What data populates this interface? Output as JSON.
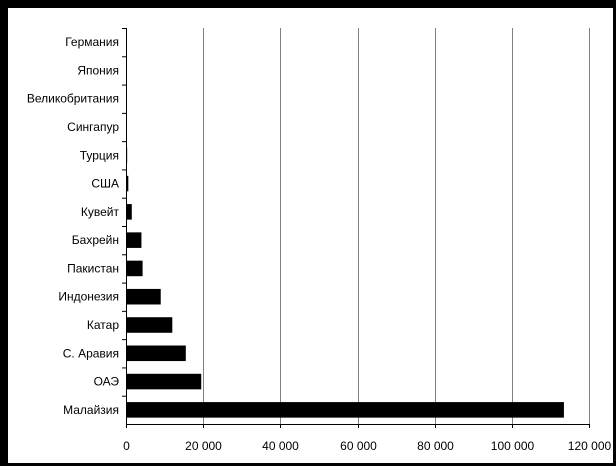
{
  "chart_data": {
    "type": "bar",
    "orientation": "horizontal",
    "title": "",
    "xlabel": "",
    "ylabel": "",
    "categories": [
      "Малайзия",
      "ОАЭ",
      "С. Аравия",
      "Катар",
      "Индонезия",
      "Пакистан",
      "Бахрейн",
      "Кувейт",
      "США",
      "Турция",
      "Сингапур",
      "Великобритания",
      "Япония",
      "Германия"
    ],
    "values": [
      113500,
      19500,
      15500,
      12000,
      9000,
      4300,
      4000,
      1500,
      600,
      300,
      50,
      30,
      20,
      10
    ],
    "xlim": [
      0,
      120000
    ],
    "xticks": [
      0,
      20000,
      40000,
      60000,
      80000,
      100000,
      120000
    ],
    "xtick_labels": [
      "0",
      "20 000",
      "40 000",
      "60 000",
      "80 000",
      "100 000",
      "120 000"
    ],
    "grid": "vertical",
    "legend": "none",
    "colors": {
      "bar": "#000000",
      "grid": "#808080",
      "axis": "#000000",
      "border": "#000000"
    }
  }
}
